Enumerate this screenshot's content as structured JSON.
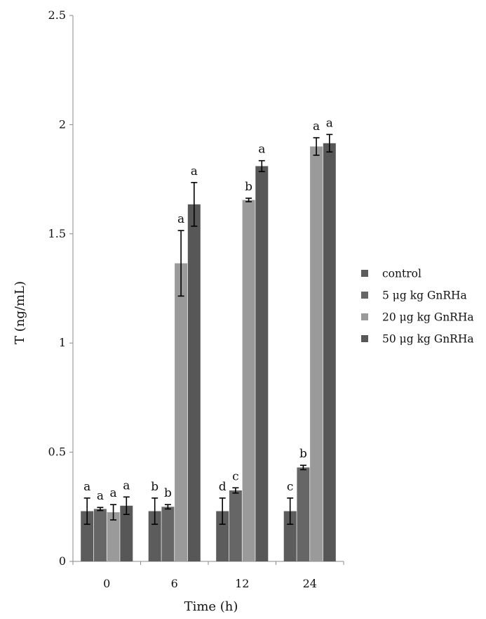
{
  "chart_data": {
    "type": "bar",
    "title": "",
    "xlabel": "Time (h)",
    "ylabel": "T (ng/mL)",
    "ylim": [
      0,
      2.5
    ],
    "yticks": [
      "0",
      "0.5",
      "1",
      "1.5",
      "2",
      "2.5"
    ],
    "categories": [
      "0",
      "6",
      "12",
      "24"
    ],
    "grid": false,
    "legend_position": "right",
    "series": [
      {
        "name": "control",
        "color": "#5c5c5c",
        "values": [
          0.23,
          0.23,
          0.23,
          0.23
        ],
        "errors": [
          0.06,
          0.06,
          0.06,
          0.06
        ],
        "labels": [
          "a",
          "b",
          "d",
          "c"
        ]
      },
      {
        "name": "5 μg kg GnRHa",
        "color": "#666666",
        "values": [
          0.24,
          0.25,
          0.325,
          0.43
        ],
        "errors": [
          0.007,
          0.01,
          0.012,
          0.01
        ],
        "labels": [
          "a",
          "b",
          "c",
          "b"
        ]
      },
      {
        "name": "20 μg kg GnRHa",
        "color": "#9a9a9a",
        "values": [
          0.225,
          1.365,
          1.655,
          1.9
        ],
        "errors": [
          0.035,
          0.15,
          0.008,
          0.04
        ],
        "labels": [
          "a",
          "a",
          "b",
          "a"
        ]
      },
      {
        "name": "50 μg kg GnRHa",
        "color": "#575757",
        "values": [
          0.255,
          1.635,
          1.81,
          1.915
        ],
        "errors": [
          0.04,
          0.1,
          0.025,
          0.04
        ],
        "labels": [
          "a",
          "a",
          "a",
          "a"
        ]
      }
    ]
  }
}
